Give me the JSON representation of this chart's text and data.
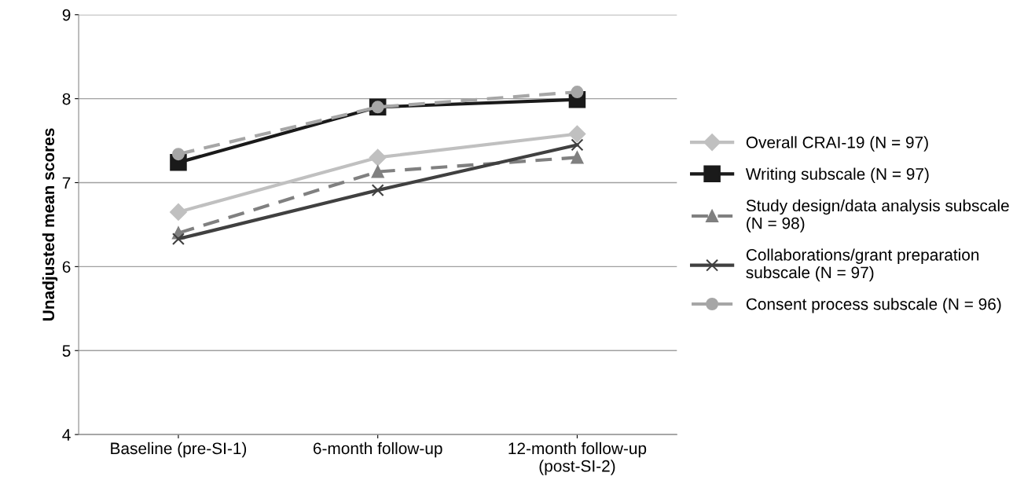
{
  "chart_data": {
    "type": "line",
    "ylabel": "Unadjusted mean scores",
    "categories": [
      "Baseline (pre-SI-1)",
      "6-month follow-up",
      "12-month follow-up\n(post-SI-2)"
    ],
    "series": [
      {
        "name": "Overall CRAI-19 (N = 97)",
        "color": "#c0c0c0",
        "marker": "diamond",
        "line_style": "solid",
        "values": [
          6.65,
          7.3,
          7.58
        ]
      },
      {
        "name": "Writing subscale (N = 97)",
        "color": "#1a1a1a",
        "marker": "square",
        "line_style": "solid",
        "values": [
          7.24,
          7.9,
          7.99
        ]
      },
      {
        "name": "Study design/data analysis subscale\n(N = 98)",
        "color": "#808080",
        "marker": "triangle",
        "line_style": "dashed",
        "values": [
          6.4,
          7.13,
          7.3
        ]
      },
      {
        "name": "Collaborations/grant preparation\nsubscale (N = 97)",
        "color": "#404040",
        "marker": "cross",
        "line_style": "solid",
        "values": [
          6.33,
          6.91,
          7.45
        ]
      },
      {
        "name": "Consent process subscale (N = 96)",
        "color": "#a6a6a6",
        "marker": "circle",
        "line_style": "dashed",
        "values": [
          7.34,
          7.9,
          8.08
        ]
      }
    ],
    "ylim": [
      4,
      9
    ],
    "yticks": [
      4,
      5,
      6,
      7,
      8,
      9
    ],
    "grid": "y",
    "legend": "right"
  }
}
